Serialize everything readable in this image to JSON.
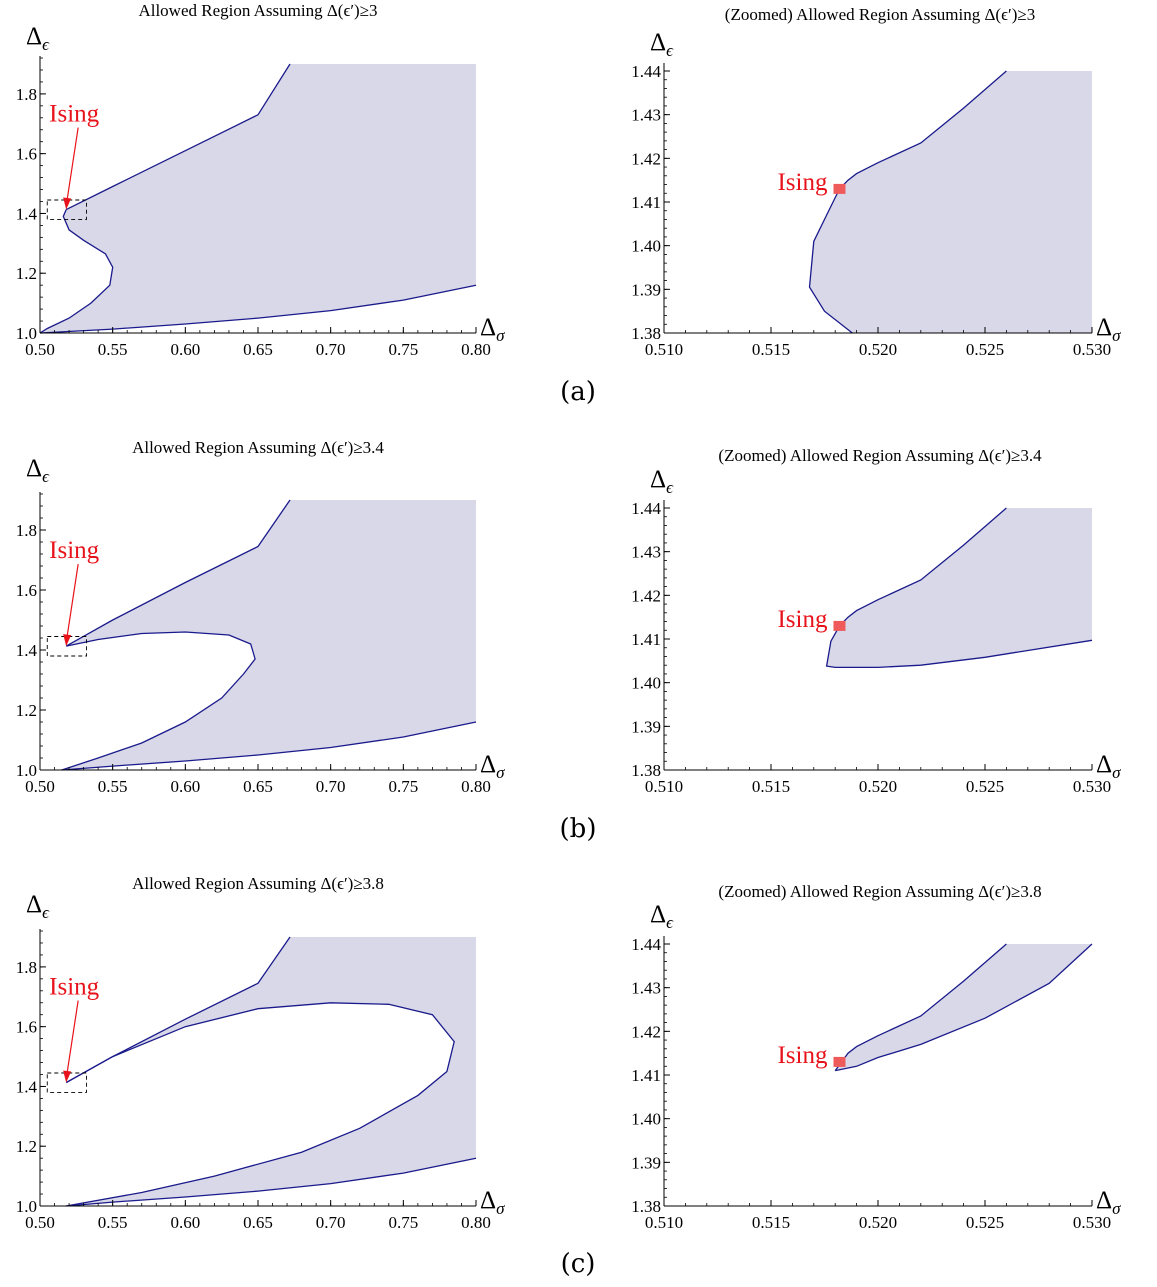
{
  "colors": {
    "region_fill": "#d8d8e8",
    "boundary": "#1a1a8c",
    "ising": "#e8121a",
    "marker": "#ef5a5a",
    "axis": "#000000"
  },
  "panel_labels": [
    "(a)",
    "(b)",
    "(c)"
  ],
  "chart_data": [
    {
      "id": "a-full",
      "type": "area",
      "title": "Allowed Region Assuming Δ(ϵ′)≥3",
      "xlabel": "Δσ",
      "ylabel": "Δϵ",
      "xlim": [
        0.5,
        0.8
      ],
      "ylim": [
        1.0,
        1.9
      ],
      "xticks": [
        "0.50",
        "0.55",
        "0.60",
        "0.65",
        "0.70",
        "0.75",
        "0.80"
      ],
      "yticks": [
        "1.0",
        "1.2",
        "1.4",
        "1.6",
        "1.8"
      ],
      "series": [
        {
          "role": "upper-boundary",
          "x": [
            0.518,
            0.55,
            0.6,
            0.65,
            0.672
          ],
          "y": [
            1.413,
            1.49,
            1.61,
            1.73,
            1.9
          ]
        },
        {
          "role": "inner-boundary",
          "x": [
            0.518,
            0.516,
            0.52,
            0.53,
            0.545,
            0.55,
            0.548,
            0.535,
            0.52,
            0.505,
            0.5
          ],
          "y": [
            1.413,
            1.39,
            1.345,
            1.31,
            1.265,
            1.22,
            1.16,
            1.1,
            1.05,
            1.015,
            1.0
          ]
        },
        {
          "role": "lower-boundary",
          "x": [
            0.5,
            0.55,
            0.6,
            0.65,
            0.7,
            0.75,
            0.8
          ],
          "y": [
            1.0,
            1.013,
            1.03,
            1.05,
            1.075,
            1.11,
            1.16
          ]
        }
      ],
      "annotations": [
        {
          "text": "Ising",
          "x": 0.518,
          "y": 1.413,
          "style": "arrow-and-dashed-box",
          "box_x": [
            0.505,
            0.532
          ],
          "box_y": [
            1.38,
            1.445
          ]
        }
      ]
    },
    {
      "id": "a-zoom",
      "type": "area",
      "title": "(Zoomed) Allowed Region Assuming Δ(ϵ′)≥3",
      "xlabel": "Δσ",
      "ylabel": "Δϵ",
      "xlim": [
        0.51,
        0.53
      ],
      "ylim": [
        1.38,
        1.44
      ],
      "xticks": [
        "0.510",
        "0.515",
        "0.520",
        "0.525",
        "0.530"
      ],
      "yticks": [
        "1.38",
        "1.39",
        "1.40",
        "1.41",
        "1.42",
        "1.43",
        "1.44"
      ],
      "series": [
        {
          "role": "upper-boundary",
          "x": [
            0.5182,
            0.5186,
            0.519,
            0.52,
            0.522,
            0.524,
            0.526
          ],
          "y": [
            1.413,
            1.415,
            1.4165,
            1.419,
            1.4235,
            1.4315,
            1.44
          ]
        },
        {
          "role": "inner-boundary",
          "x": [
            0.5182,
            0.5176,
            0.517,
            0.5168,
            0.5175,
            0.5188
          ],
          "y": [
            1.413,
            1.407,
            1.401,
            1.3905,
            1.385,
            1.38
          ]
        }
      ],
      "annotations": [
        {
          "text": "Ising",
          "x": 0.5182,
          "y": 1.413,
          "style": "square-marker"
        }
      ]
    },
    {
      "id": "b-full",
      "type": "area",
      "title": "Allowed Region Assuming Δ(ϵ′)≥3.4",
      "xlabel": "Δσ",
      "ylabel": "Δϵ",
      "xlim": [
        0.5,
        0.8
      ],
      "ylim": [
        1.0,
        1.9
      ],
      "xticks": [
        "0.50",
        "0.55",
        "0.60",
        "0.65",
        "0.70",
        "0.75",
        "0.80"
      ],
      "yticks": [
        "1.0",
        "1.2",
        "1.4",
        "1.6",
        "1.8"
      ],
      "series": [
        {
          "role": "upper-boundary",
          "x": [
            0.518,
            0.55,
            0.6,
            0.65,
            0.672
          ],
          "y": [
            1.413,
            1.5,
            1.625,
            1.745,
            1.9
          ]
        },
        {
          "role": "inner-boundary",
          "x": [
            0.518,
            0.54,
            0.57,
            0.6,
            0.63,
            0.645,
            0.648,
            0.64,
            0.625,
            0.6,
            0.57,
            0.54,
            0.515
          ],
          "y": [
            1.413,
            1.435,
            1.455,
            1.46,
            1.45,
            1.42,
            1.37,
            1.32,
            1.24,
            1.16,
            1.09,
            1.04,
            1.0
          ]
        },
        {
          "role": "lower-boundary",
          "x": [
            0.515,
            0.55,
            0.6,
            0.65,
            0.7,
            0.75,
            0.8
          ],
          "y": [
            1.0,
            1.013,
            1.03,
            1.05,
            1.075,
            1.11,
            1.16
          ]
        }
      ],
      "annotations": [
        {
          "text": "Ising",
          "x": 0.518,
          "y": 1.413,
          "style": "arrow-and-dashed-box",
          "box_x": [
            0.505,
            0.532
          ],
          "box_y": [
            1.38,
            1.445
          ]
        }
      ]
    },
    {
      "id": "b-zoom",
      "type": "area",
      "title": "(Zoomed) Allowed Region Assuming Δ(ϵ′)≥3.4",
      "xlabel": "Δσ",
      "ylabel": "Δϵ",
      "xlim": [
        0.51,
        0.53
      ],
      "ylim": [
        1.38,
        1.44
      ],
      "xticks": [
        "0.510",
        "0.515",
        "0.520",
        "0.525",
        "0.530"
      ],
      "yticks": [
        "1.38",
        "1.39",
        "1.40",
        "1.41",
        "1.42",
        "1.43",
        "1.44"
      ],
      "series": [
        {
          "role": "upper-boundary",
          "x": [
            0.5182,
            0.5186,
            0.519,
            0.52,
            0.522,
            0.524,
            0.526
          ],
          "y": [
            1.413,
            1.415,
            1.4165,
            1.419,
            1.4235,
            1.4315,
            1.44
          ]
        },
        {
          "role": "inner-boundary",
          "x": [
            0.5182,
            0.5178,
            0.5176,
            0.518,
            0.52,
            0.522,
            0.525,
            0.53
          ],
          "y": [
            1.413,
            1.4095,
            1.4038,
            1.4035,
            1.4035,
            1.404,
            1.4058,
            1.4097
          ]
        }
      ],
      "annotations": [
        {
          "text": "Ising",
          "x": 0.5182,
          "y": 1.413,
          "style": "square-marker"
        }
      ]
    },
    {
      "id": "c-full",
      "type": "area",
      "title": "Allowed Region Assuming Δ(ϵ′)≥3.8",
      "xlabel": "Δσ",
      "ylabel": "Δϵ",
      "xlim": [
        0.5,
        0.8
      ],
      "ylim": [
        1.0,
        1.9
      ],
      "xticks": [
        "0.50",
        "0.55",
        "0.60",
        "0.65",
        "0.70",
        "0.75",
        "0.80"
      ],
      "yticks": [
        "1.0",
        "1.2",
        "1.4",
        "1.6",
        "1.8"
      ],
      "series": [
        {
          "role": "upper-boundary",
          "x": [
            0.518,
            0.55,
            0.6,
            0.65,
            0.672
          ],
          "y": [
            1.413,
            1.5,
            1.625,
            1.745,
            1.9
          ]
        },
        {
          "role": "inner-boundary",
          "x": [
            0.518,
            0.55,
            0.6,
            0.65,
            0.7,
            0.74,
            0.77,
            0.785,
            0.78,
            0.76,
            0.72,
            0.68,
            0.62,
            0.57,
            0.518
          ],
          "y": [
            1.413,
            1.5,
            1.6,
            1.66,
            1.68,
            1.675,
            1.64,
            1.55,
            1.45,
            1.37,
            1.26,
            1.18,
            1.1,
            1.045,
            1.0
          ]
        },
        {
          "role": "lower-boundary",
          "x": [
            0.518,
            0.55,
            0.6,
            0.65,
            0.7,
            0.75,
            0.8
          ],
          "y": [
            1.0,
            1.013,
            1.03,
            1.05,
            1.075,
            1.11,
            1.16
          ]
        }
      ],
      "annotations": [
        {
          "text": "Ising",
          "x": 0.518,
          "y": 1.413,
          "style": "arrow-and-dashed-box",
          "box_x": [
            0.505,
            0.532
          ],
          "box_y": [
            1.38,
            1.445
          ]
        }
      ]
    },
    {
      "id": "c-zoom",
      "type": "area",
      "title": "(Zoomed) Allowed Region Assuming Δ(ϵ′)≥3.8",
      "xlabel": "Δσ",
      "ylabel": "Δϵ",
      "xlim": [
        0.51,
        0.53
      ],
      "ylim": [
        1.38,
        1.44
      ],
      "xticks": [
        "0.510",
        "0.515",
        "0.520",
        "0.525",
        "0.530"
      ],
      "yticks": [
        "1.38",
        "1.39",
        "1.40",
        "1.41",
        "1.42",
        "1.43",
        "1.44"
      ],
      "series": [
        {
          "role": "upper-boundary",
          "x": [
            0.518,
            0.5186,
            0.519,
            0.52,
            0.522,
            0.524,
            0.526
          ],
          "y": [
            1.411,
            1.415,
            1.4165,
            1.419,
            1.4235,
            1.4315,
            1.44
          ]
        },
        {
          "role": "lower-boundary",
          "x": [
            0.518,
            0.519,
            0.52,
            0.522,
            0.525,
            0.528,
            0.53
          ],
          "y": [
            1.411,
            1.412,
            1.414,
            1.417,
            1.423,
            1.431,
            1.44
          ]
        }
      ],
      "annotations": [
        {
          "text": "Ising",
          "x": 0.5182,
          "y": 1.413,
          "style": "square-marker"
        }
      ]
    }
  ]
}
